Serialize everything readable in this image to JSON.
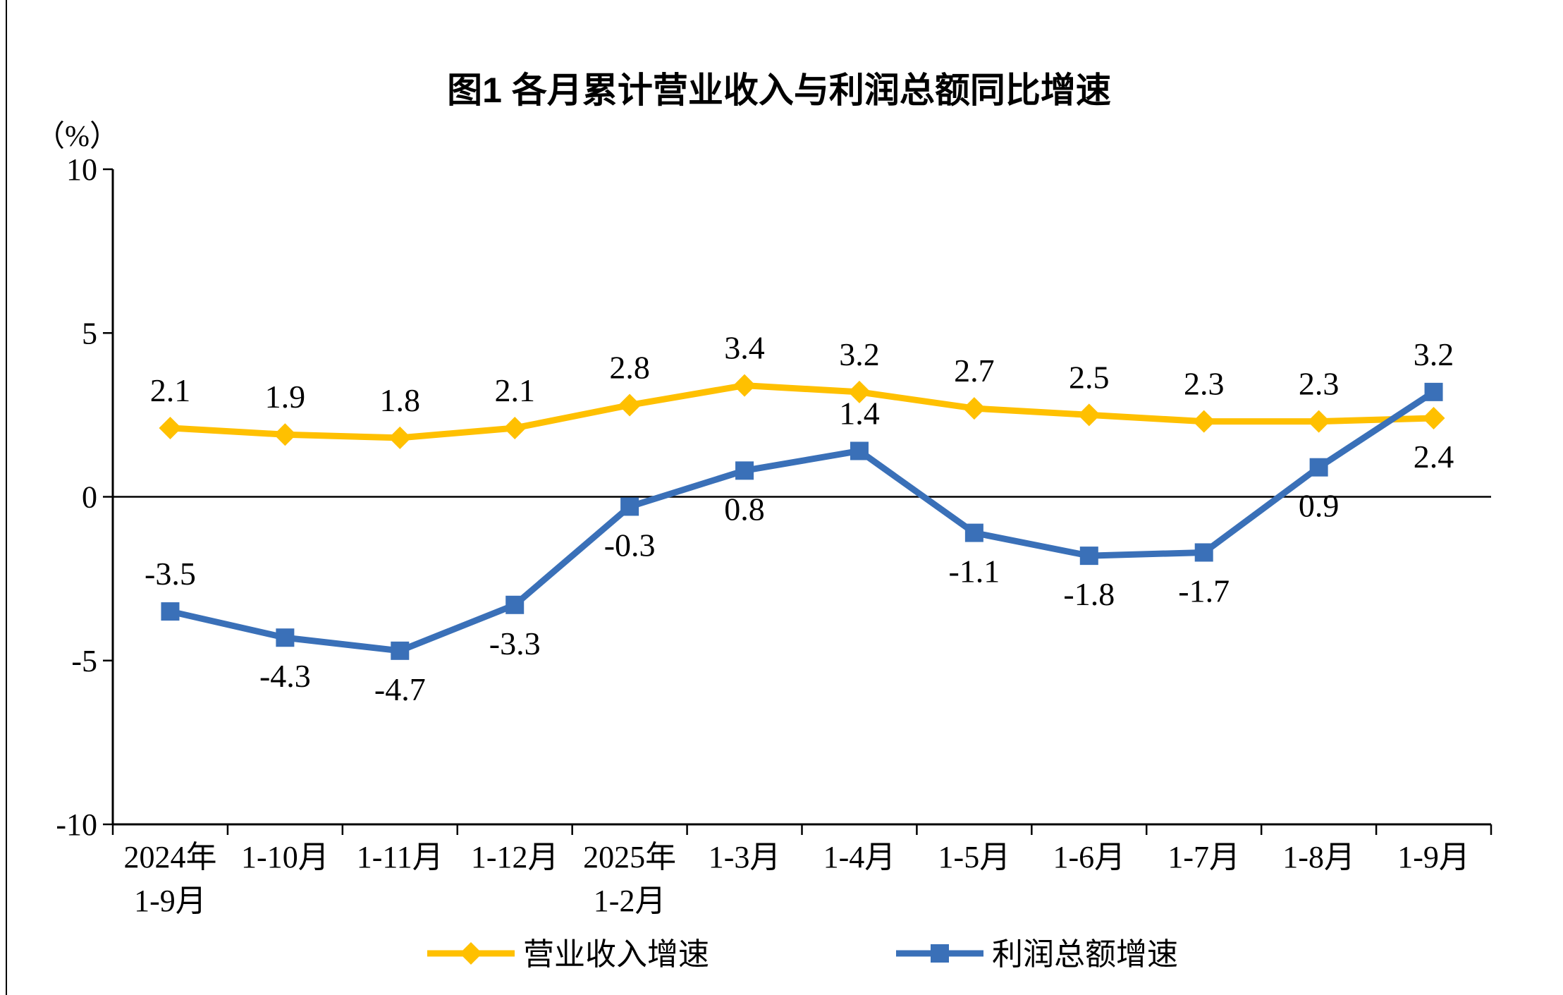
{
  "figure": {
    "background": "#FFFFFF",
    "border_color": "#000000"
  },
  "chart_data": {
    "type": "line",
    "title": "图1 各月累计营业收入与利润总额同比增速",
    "unit_label": "（%）",
    "categories": [
      "2024年\n1-9月",
      "1-10月",
      "1-11月",
      "1-12月",
      "2025年\n1-2月",
      "1-3月",
      "1-4月",
      "1-5月",
      "1-6月",
      "1-7月",
      "1-8月",
      "1-9月"
    ],
    "series": [
      {
        "name": "营业收入增速",
        "color": "#FFC000",
        "marker": "diamond",
        "values": [
          2.1,
          1.9,
          1.8,
          2.1,
          2.8,
          3.4,
          3.2,
          2.7,
          2.5,
          2.3,
          2.3,
          2.4
        ],
        "label_side": [
          "above",
          "above",
          "above",
          "above",
          "above",
          "above",
          "above",
          "above",
          "above",
          "above",
          "above",
          "below"
        ]
      },
      {
        "name": "利润总额增速",
        "color": "#3A70B8",
        "marker": "square",
        "values": [
          -3.5,
          -4.3,
          -4.7,
          -3.3,
          -0.3,
          0.8,
          1.4,
          -1.1,
          -1.8,
          -1.7,
          0.9,
          3.2
        ],
        "label_side": [
          "above",
          "below",
          "below",
          "below",
          "below",
          "below",
          "above",
          "below",
          "below",
          "below",
          "below",
          "above"
        ]
      }
    ],
    "ylim": [
      -10,
      10
    ],
    "yticks": [
      10,
      5,
      0,
      -5,
      -10
    ],
    "zero_line": true,
    "grid": false,
    "legend_position": "bottom",
    "axis_color": "#000000",
    "text_color": "#000000"
  }
}
